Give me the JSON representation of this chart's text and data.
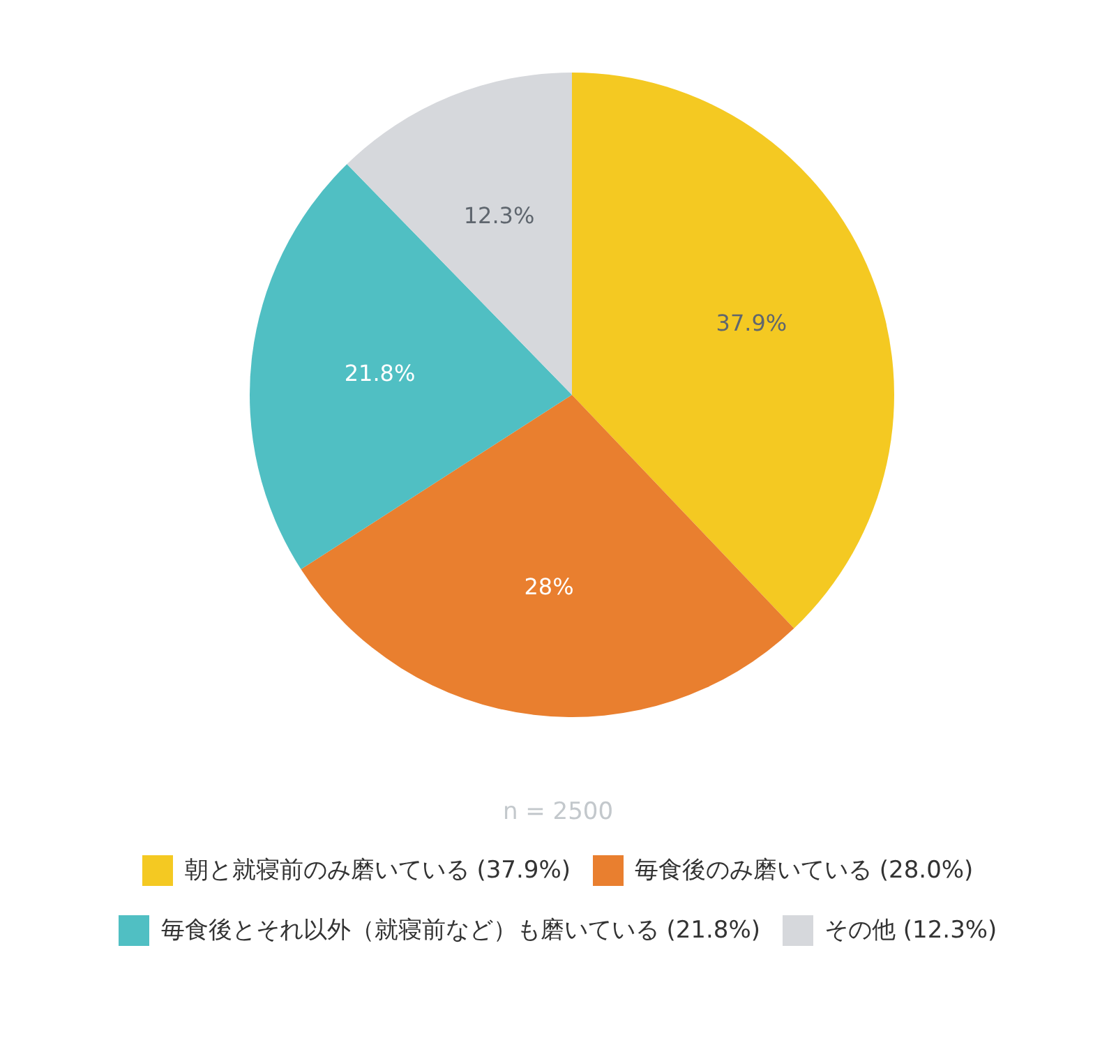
{
  "chart_data": {
    "type": "pie",
    "categories": [
      "朝と就寝前のみ磨いている (37.9%)",
      "毎食後のみ磨いている (28.0%)",
      "毎食後とそれ以外（就寝前など）も磨いている (21.8%)",
      "その他 (12.3%)"
    ],
    "values": [
      37.9,
      28.0,
      21.8,
      12.3
    ],
    "colors": [
      "#f4c922",
      "#e97f2f",
      "#50bfc3",
      "#d6d8dc"
    ],
    "value_labels": [
      "37.9%",
      "28%",
      "21.8%",
      "12.3%"
    ],
    "annotations": [
      "n = 2500"
    ],
    "legend": "bottom"
  }
}
